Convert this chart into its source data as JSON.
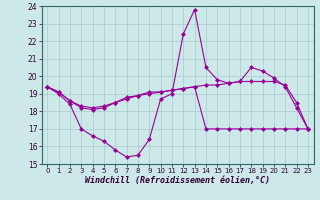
{
  "xlabel": "Windchill (Refroidissement éolien,°C)",
  "x": [
    0,
    1,
    2,
    3,
    4,
    5,
    6,
    7,
    8,
    9,
    10,
    11,
    12,
    13,
    14,
    15,
    16,
    17,
    18,
    19,
    20,
    21,
    22,
    23
  ],
  "line1": [
    19.4,
    19.0,
    18.4,
    17.0,
    16.6,
    16.3,
    15.8,
    15.4,
    15.5,
    16.4,
    18.7,
    19.0,
    22.4,
    23.8,
    20.5,
    19.8,
    19.6,
    19.7,
    20.5,
    20.3,
    19.9,
    19.4,
    18.2,
    17.0
  ],
  "line2": [
    19.4,
    19.1,
    18.6,
    18.2,
    18.1,
    18.2,
    18.5,
    18.7,
    18.9,
    19.0,
    19.1,
    19.2,
    19.3,
    19.4,
    19.5,
    19.5,
    19.6,
    19.7,
    19.7,
    19.7,
    19.7,
    19.5,
    18.5,
    17.0
  ],
  "line3": [
    19.4,
    19.1,
    18.6,
    18.3,
    18.2,
    18.3,
    18.5,
    18.8,
    18.9,
    19.1,
    19.1,
    19.2,
    19.3,
    19.4,
    17.0,
    17.0,
    17.0,
    17.0,
    17.0,
    17.0,
    17.0,
    17.0,
    17.0,
    17.0
  ],
  "line_color": "#990099",
  "bg_color": "#cce8e8",
  "grid_color": "#aacccc",
  "ylim": [
    15,
    24
  ],
  "yticks": [
    15,
    16,
    17,
    18,
    19,
    20,
    21,
    22,
    23,
    24
  ],
  "xticks": [
    0,
    1,
    2,
    3,
    4,
    5,
    6,
    7,
    8,
    9,
    10,
    11,
    12,
    13,
    14,
    15,
    16,
    17,
    18,
    19,
    20,
    21,
    22,
    23
  ],
  "marker": "D",
  "markersize": 2.0,
  "linewidth": 0.8,
  "tick_fontsize": 5.5,
  "xlabel_fontsize": 6.0
}
